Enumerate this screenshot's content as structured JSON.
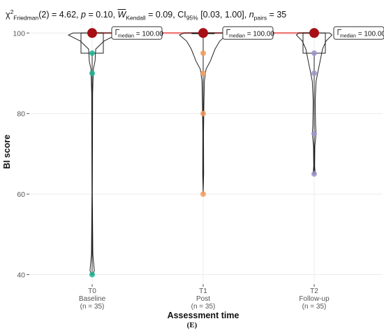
{
  "stats": {
    "chi": "χ",
    "friedman_sup": "2",
    "friedman_sub": "Friedman",
    "friedman_df": "(2) = 4.62, ",
    "p_symbol": "p",
    "p_value": " = 0.10, ",
    "w_symbol": "W",
    "w_sub": "Kendall",
    "w_value": " = 0.09, CI",
    "ci_sub": "95%",
    "ci_value": " [0.03, 1.00], ",
    "n_symbol": "n",
    "n_sub": "pairs",
    "n_value": " = 35"
  },
  "panel_label": "(E)",
  "chart_data": {
    "type": "violin",
    "title": "",
    "xlabel": "Assessment time",
    "ylabel": "BI score",
    "ylim": [
      38,
      103
    ],
    "yticks": [
      40,
      60,
      80,
      100
    ],
    "grid": true,
    "categories": [
      {
        "code": "T0",
        "name": "Baseline",
        "n": "(n = 35)",
        "color": "#1fb394",
        "points": [
          100,
          95,
          90,
          40
        ],
        "median": 100,
        "median_label_prefix": "median",
        "median_label_value": " = 100.00",
        "box": {
          "q1": 95,
          "median": 100,
          "q3": 100
        }
      },
      {
        "code": "T1",
        "name": "Post",
        "n": "(n = 35)",
        "color": "#f39a5b",
        "points": [
          100,
          95,
          90,
          80,
          60
        ],
        "median": 100,
        "median_label_prefix": "median",
        "median_label_value": " = 100.00",
        "box": {
          "q1": 100,
          "median": 100,
          "q3": 100
        }
      },
      {
        "code": "T2",
        "name": "Follow-up",
        "n": "(n = 35)",
        "color": "#9d93c9",
        "points": [
          100,
          95,
          90,
          75,
          65
        ],
        "median": 100,
        "median_label_prefix": "median",
        "median_label_value": " = 100.00",
        "box": {
          "q1": 95,
          "median": 100,
          "q3": 100
        }
      }
    ],
    "median_color": "#a50f15",
    "median_line_color": "#f08080",
    "violin_widths": [
      [
        [
          100,
          0.8
        ],
        [
          99.5,
          1.0
        ],
        [
          98,
          0.5
        ],
        [
          96,
          0.15
        ],
        [
          93,
          0.12
        ],
        [
          91,
          0.05
        ],
        [
          85,
          0.02
        ],
        [
          60,
          0.01
        ],
        [
          45,
          0.03
        ],
        [
          41,
          0.09
        ],
        [
          40,
          0.03
        ]
      ],
      [
        [
          100,
          0.8
        ],
        [
          99.5,
          1.0
        ],
        [
          98,
          0.7
        ],
        [
          96,
          0.5
        ],
        [
          93,
          0.3
        ],
        [
          91,
          0.12
        ],
        [
          88,
          0.05
        ],
        [
          82,
          0.03
        ],
        [
          75,
          0.015
        ],
        [
          65,
          0.02
        ],
        [
          60,
          0.0
        ]
      ],
      [
        [
          100,
          0.65
        ],
        [
          99.5,
          0.75
        ],
        [
          98,
          0.5
        ],
        [
          96,
          0.35
        ],
        [
          93,
          0.25
        ],
        [
          91,
          0.18
        ],
        [
          88,
          0.08
        ],
        [
          83,
          0.04
        ],
        [
          77,
          0.06
        ],
        [
          75,
          0.08
        ],
        [
          72,
          0.03
        ],
        [
          67,
          0.02
        ],
        [
          65,
          0.04
        ]
      ]
    ]
  }
}
